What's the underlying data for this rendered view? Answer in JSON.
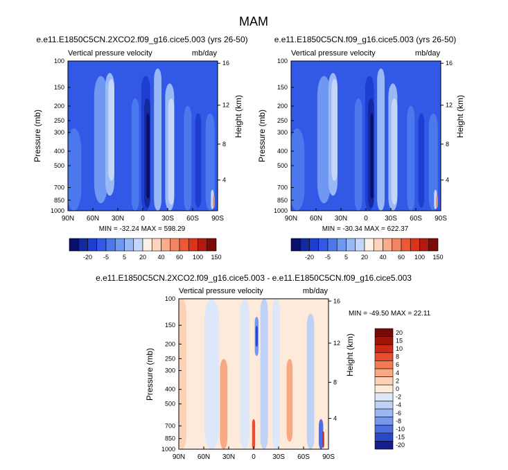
{
  "page": {
    "title": "MAM"
  },
  "chart_data": [
    {
      "id": "p1",
      "type": "heatmap",
      "title": "e.e11.E1850C5CN.2XCO2.f09_g16.cice5.003 (yrs 26-50)",
      "left_label": "Vertical pressure velocity",
      "right_label": "mb/day",
      "ylabel": "Pressure (mb)",
      "ylabel_right": "Height (km)",
      "x_ticks": [
        "90N",
        "60N",
        "30N",
        "0",
        "30S",
        "60S",
        "90S"
      ],
      "y_ticks": [
        "100",
        "150",
        "200",
        "250",
        "300",
        "400",
        "500",
        "700",
        "850",
        "1000"
      ],
      "height_ticks": [
        "16",
        "12",
        "8",
        "4"
      ],
      "minmax": "MIN = -32.24   MAX = 598.29",
      "colorbar_levels": [
        "-20",
        "-5",
        "5",
        "20",
        "40",
        "60",
        "100",
        "150"
      ]
    },
    {
      "id": "p2",
      "type": "heatmap",
      "title": "e.e11.E1850C5CN.f09_g16.cice5.003 (yrs 26-50)",
      "left_label": "Vertical pressure velocity",
      "right_label": "mb/day",
      "ylabel": "Pressure (mb)",
      "ylabel_right": "Height (km)",
      "x_ticks": [
        "90N",
        "60N",
        "30N",
        "0",
        "30S",
        "60S",
        "90S"
      ],
      "y_ticks": [
        "100",
        "150",
        "200",
        "250",
        "300",
        "400",
        "500",
        "700",
        "850",
        "1000"
      ],
      "height_ticks": [
        "16",
        "12",
        "8",
        "4"
      ],
      "minmax": "MIN = -30.34   MAX = 622.37",
      "colorbar_levels": [
        "-20",
        "-5",
        "5",
        "20",
        "40",
        "60",
        "100",
        "150"
      ]
    },
    {
      "id": "p3",
      "type": "heatmap",
      "title": "e.e11.E1850C5CN.2XCO2.f09_g16.cice5.003 - e.e11.E1850C5CN.f09_g16.cice5.003",
      "left_label": "Vertical pressure velocity",
      "right_label": "mb/day",
      "ylabel": "Pressure (mb)",
      "ylabel_right": "Height (km)",
      "x_ticks": [
        "90N",
        "60N",
        "30N",
        "0",
        "30S",
        "60S",
        "90S"
      ],
      "y_ticks": [
        "100",
        "150",
        "200",
        "250",
        "300",
        "400",
        "500",
        "700",
        "850",
        "1000"
      ],
      "height_ticks": [
        "16",
        "12",
        "8",
        "4"
      ],
      "minmax": "MIN = -49.50   MAX =  22.11",
      "colorbar_levels": [
        "20",
        "15",
        "10",
        "8",
        "6",
        "4",
        "2",
        "0",
        "-2",
        "-4",
        "-6",
        "-8",
        "-10",
        "-15",
        "-20"
      ]
    }
  ],
  "colors": {
    "abs_scale": [
      "#08106c",
      "#1428a0",
      "#1e3ed0",
      "#3258e6",
      "#4c78ee",
      "#6e98f2",
      "#98b8f6",
      "#c4d6fa",
      "#fdf1e6",
      "#fcd3bb",
      "#f8ae8c",
      "#f48562",
      "#ec5838",
      "#d8341e",
      "#b01a10",
      "#7c0a06"
    ],
    "diff_scale": [
      "#780a06",
      "#a01408",
      "#cc2a16",
      "#e84e2e",
      "#f47a55",
      "#f8a882",
      "#fbd2b8",
      "#fdeadb",
      "#dce8fa",
      "#bed2f6",
      "#9cb8f2",
      "#7898ec",
      "#4e6ee0",
      "#2a48c8",
      "#141e8e"
    ]
  }
}
